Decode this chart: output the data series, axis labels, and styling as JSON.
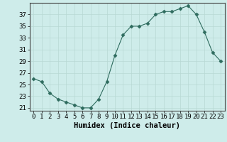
{
  "x": [
    0,
    1,
    2,
    3,
    4,
    5,
    6,
    7,
    8,
    9,
    10,
    11,
    12,
    13,
    14,
    15,
    16,
    17,
    18,
    19,
    20,
    21,
    22,
    23
  ],
  "y": [
    26,
    25.5,
    23.5,
    22.5,
    22,
    21.5,
    21,
    21,
    22.5,
    25.5,
    30,
    33.5,
    35,
    35,
    35.5,
    37,
    37.5,
    37.5,
    38,
    38.5,
    37,
    34,
    30.5,
    29
  ],
  "line_color": "#2e6b5e",
  "marker": "D",
  "marker_size": 2.5,
  "bg_color": "#ceecea",
  "grid_color": "#b8d8d4",
  "xlabel": "Humidex (Indice chaleur)",
  "ylim": [
    20.5,
    39
  ],
  "xlim": [
    -0.5,
    23.5
  ],
  "yticks": [
    21,
    23,
    25,
    27,
    29,
    31,
    33,
    35,
    37
  ],
  "xticks": [
    0,
    1,
    2,
    3,
    4,
    5,
    6,
    7,
    8,
    9,
    10,
    11,
    12,
    13,
    14,
    15,
    16,
    17,
    18,
    19,
    20,
    21,
    22,
    23
  ],
  "font_size": 6.5,
  "xlabel_fontsize": 7.5
}
